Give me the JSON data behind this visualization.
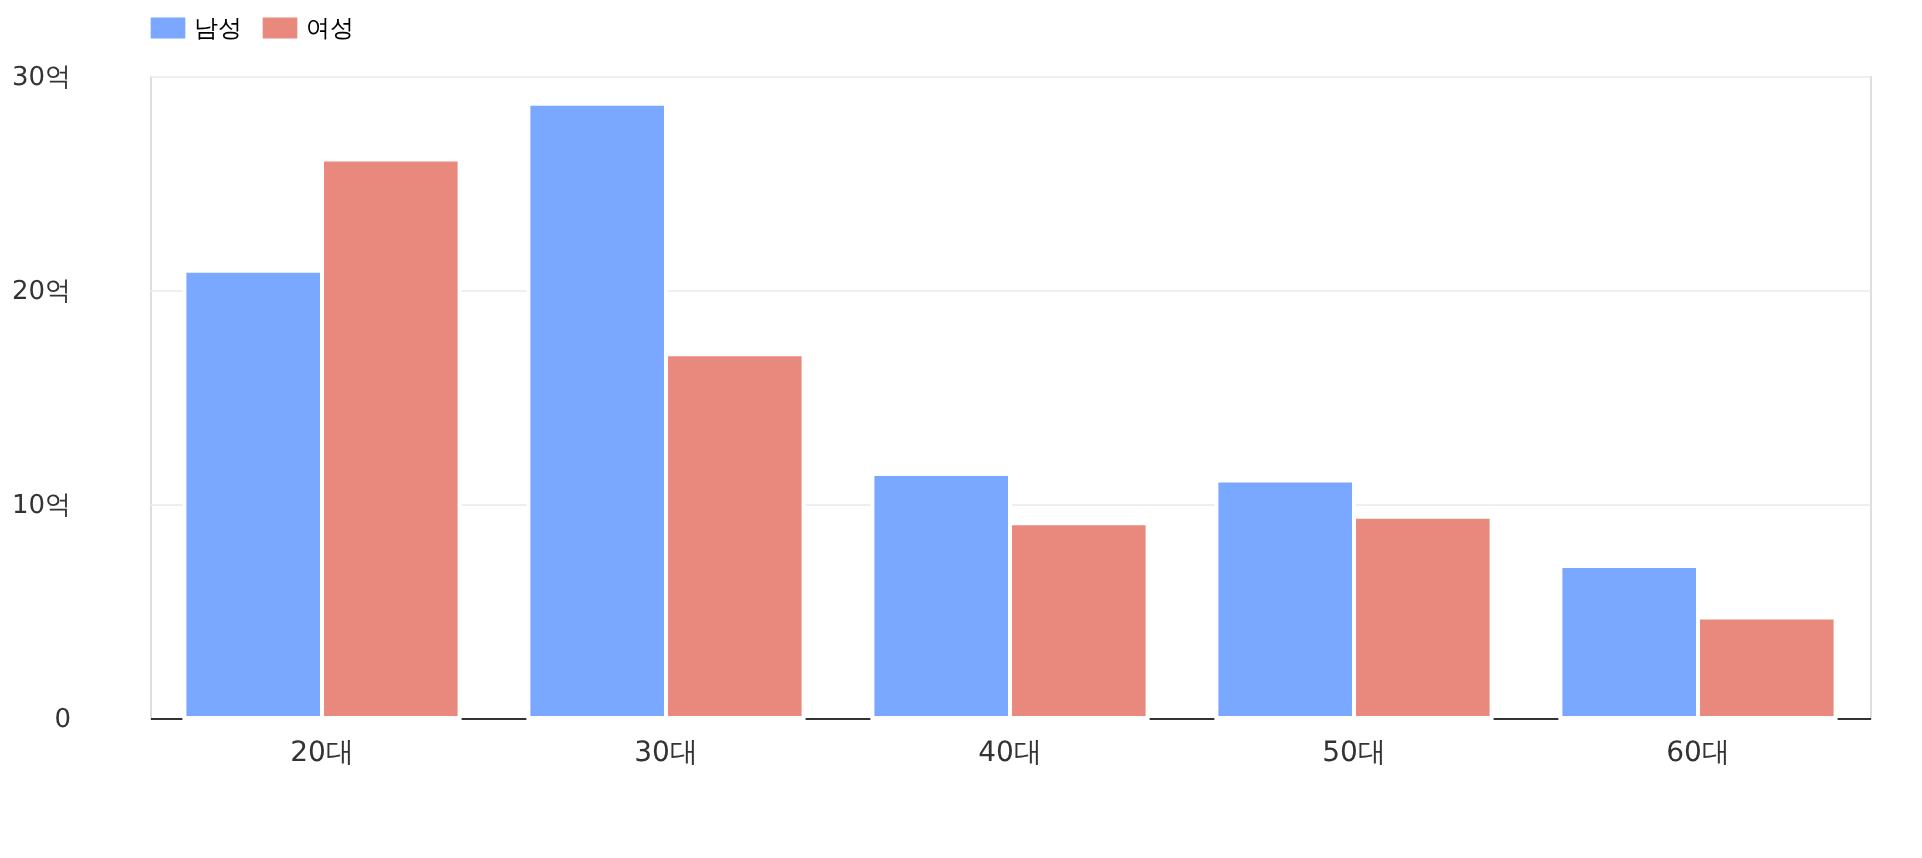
{
  "chart_data": {
    "type": "bar",
    "categories": [
      "20대",
      "30대",
      "40대",
      "50대",
      "60대"
    ],
    "series": [
      {
        "name": "남성",
        "color": "#7aa7ff",
        "values": [
          20.9,
          28.7,
          11.4,
          11.1,
          7.1
        ]
      },
      {
        "name": "여성",
        "color": "#e9897e",
        "values": [
          26.1,
          17.0,
          9.1,
          9.4,
          4.7
        ]
      }
    ],
    "ylim": [
      0,
      30
    ],
    "yticks": [
      0,
      {
        "value": 10,
        "label": "10억"
      },
      {
        "value": 20,
        "label": "20억"
      },
      {
        "value": 30,
        "label": "30억"
      }
    ],
    "grid": "y",
    "legend": "top"
  }
}
